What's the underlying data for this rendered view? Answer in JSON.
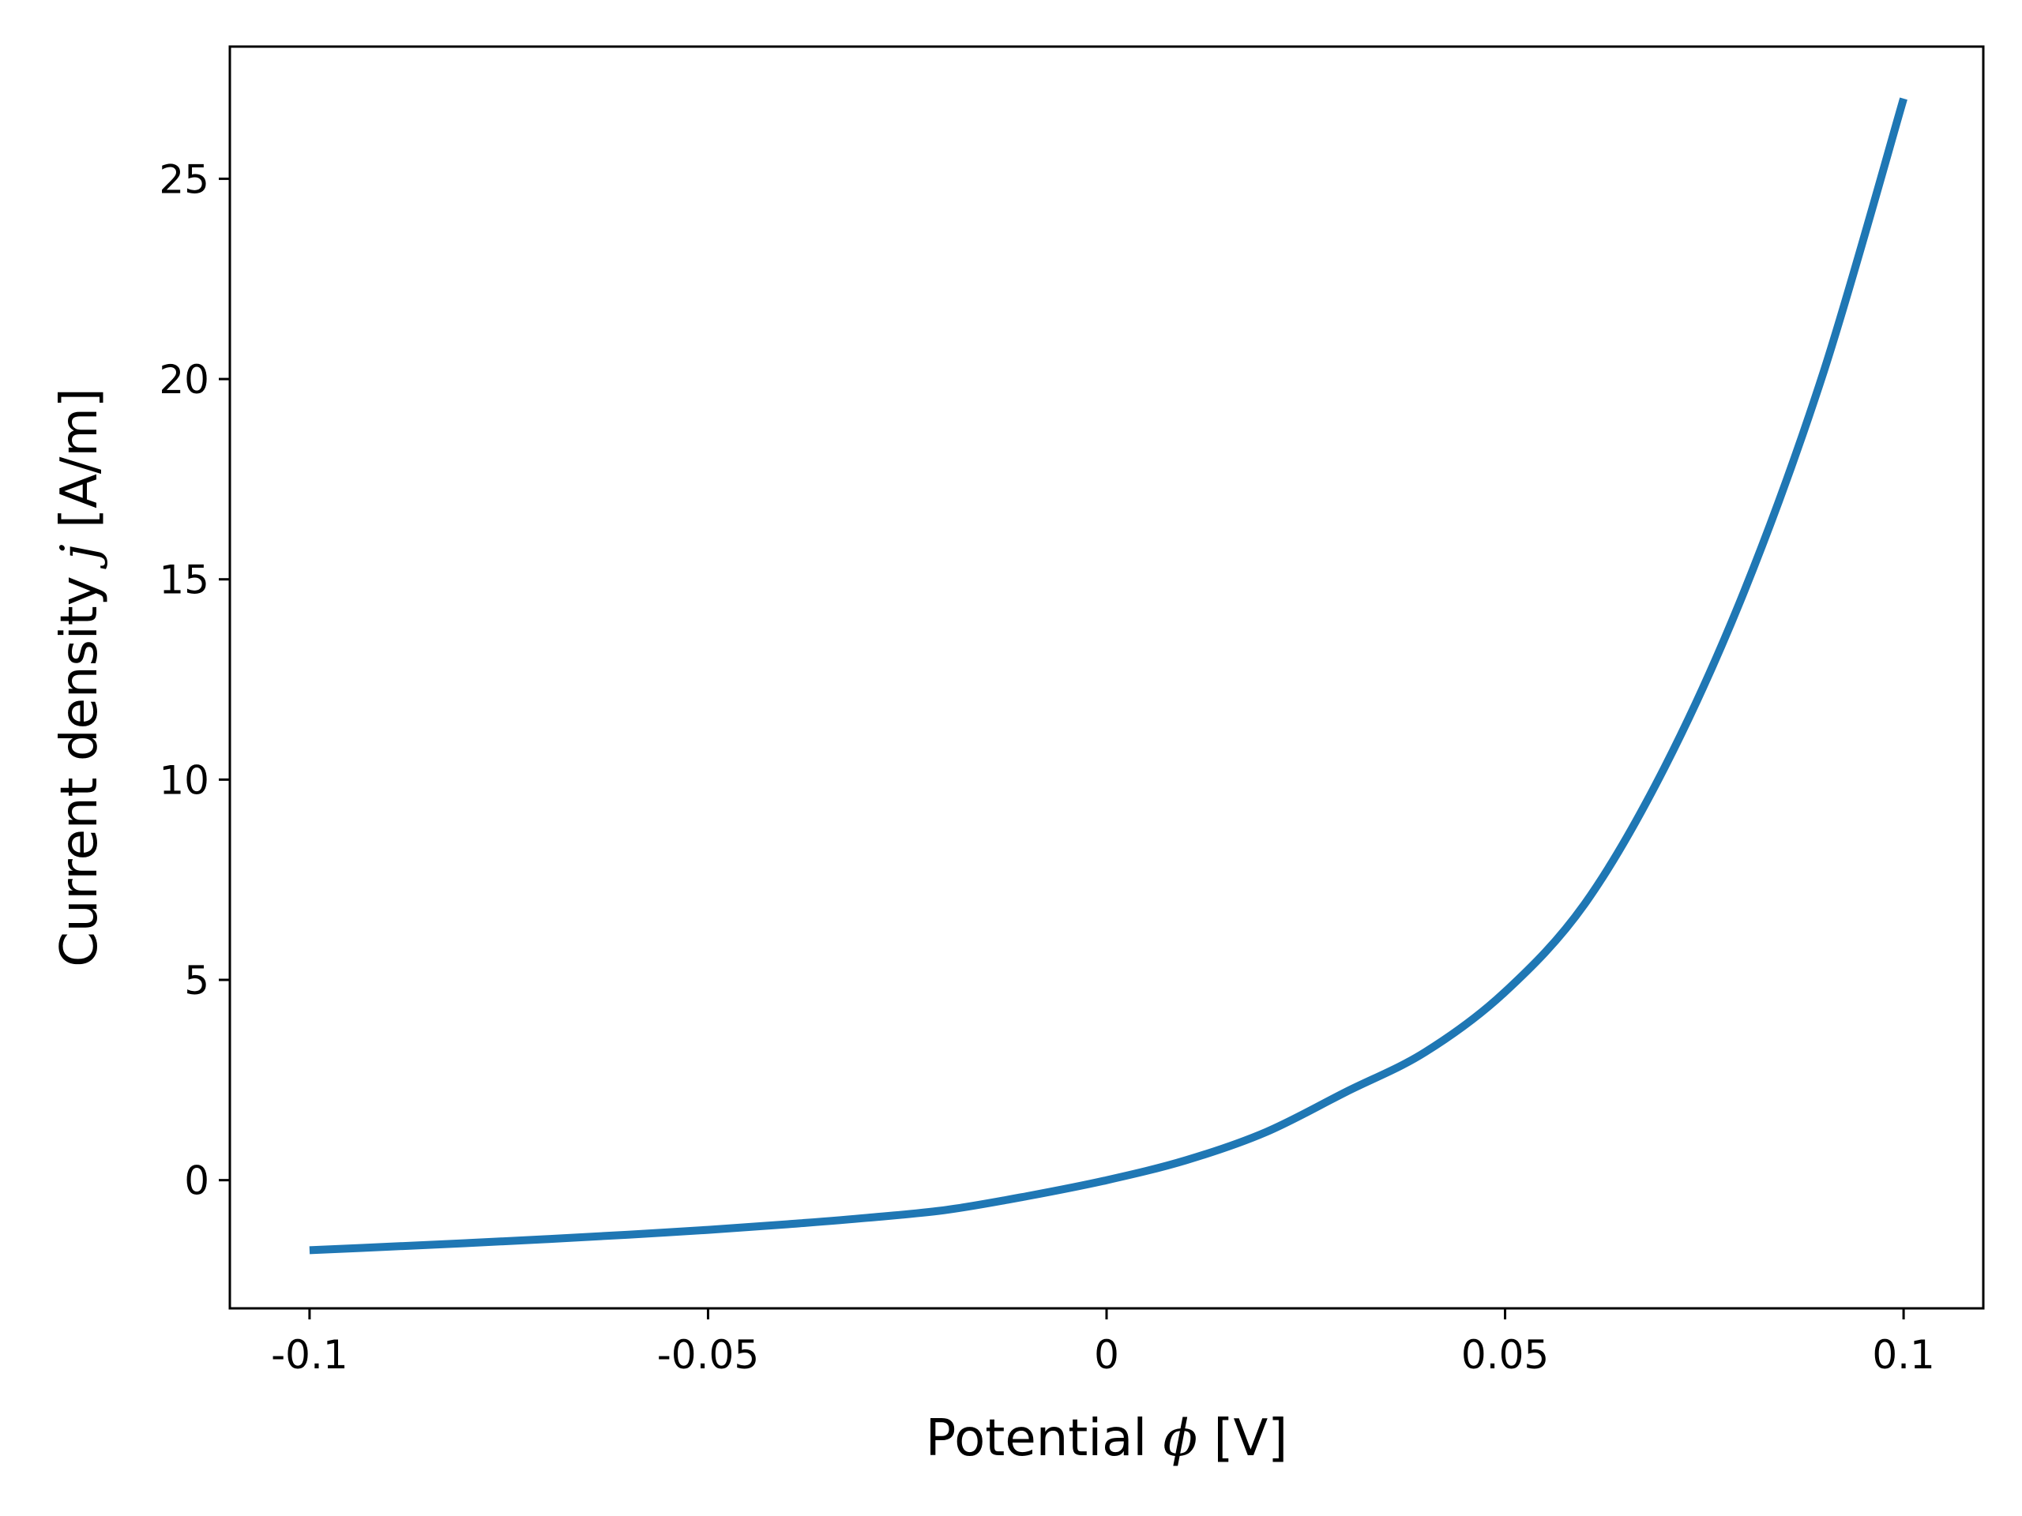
{
  "chart_data": {
    "type": "line",
    "xlabel": {
      "prefix": "Potential ",
      "symbol": "ϕ",
      "suffix": " [V]"
    },
    "ylabel": {
      "prefix": "Current density ",
      "symbol": "j",
      "suffix": " [A/m]"
    },
    "xlim": [
      -0.11,
      0.11
    ],
    "ylim": [
      -3.2,
      28.3
    ],
    "x_ticks": [
      {
        "value": -0.1,
        "label": "-0.1"
      },
      {
        "value": -0.05,
        "label": "-0.05"
      },
      {
        "value": 0,
        "label": "0"
      },
      {
        "value": 0.05,
        "label": "0.05"
      },
      {
        "value": 0.1,
        "label": "0.1"
      }
    ],
    "y_ticks": [
      {
        "value": 0,
        "label": "0"
      },
      {
        "value": 5,
        "label": "5"
      },
      {
        "value": 10,
        "label": "10"
      },
      {
        "value": 15,
        "label": "15"
      },
      {
        "value": 20,
        "label": "20"
      },
      {
        "value": 25,
        "label": "25"
      }
    ],
    "grid": false,
    "series": [
      {
        "color": "#1f77b4",
        "x": [
          -0.1,
          -0.09,
          -0.08,
          -0.07,
          -0.06,
          -0.05,
          -0.04,
          -0.03,
          -0.02,
          -0.01,
          0,
          0.01,
          0.02,
          0.03,
          0.04,
          0.05,
          0.06,
          0.07,
          0.08,
          0.09,
          0.1
        ],
        "y": [
          -1.75,
          -1.66,
          -1.57,
          -1.47,
          -1.36,
          -1.24,
          -1.1,
          -0.94,
          -0.74,
          -0.4,
          0.0,
          0.5,
          1.2,
          2.2,
          3.2,
          4.7,
          6.9,
          10.3,
          14.7,
          20.2,
          27.0
        ]
      }
    ]
  }
}
